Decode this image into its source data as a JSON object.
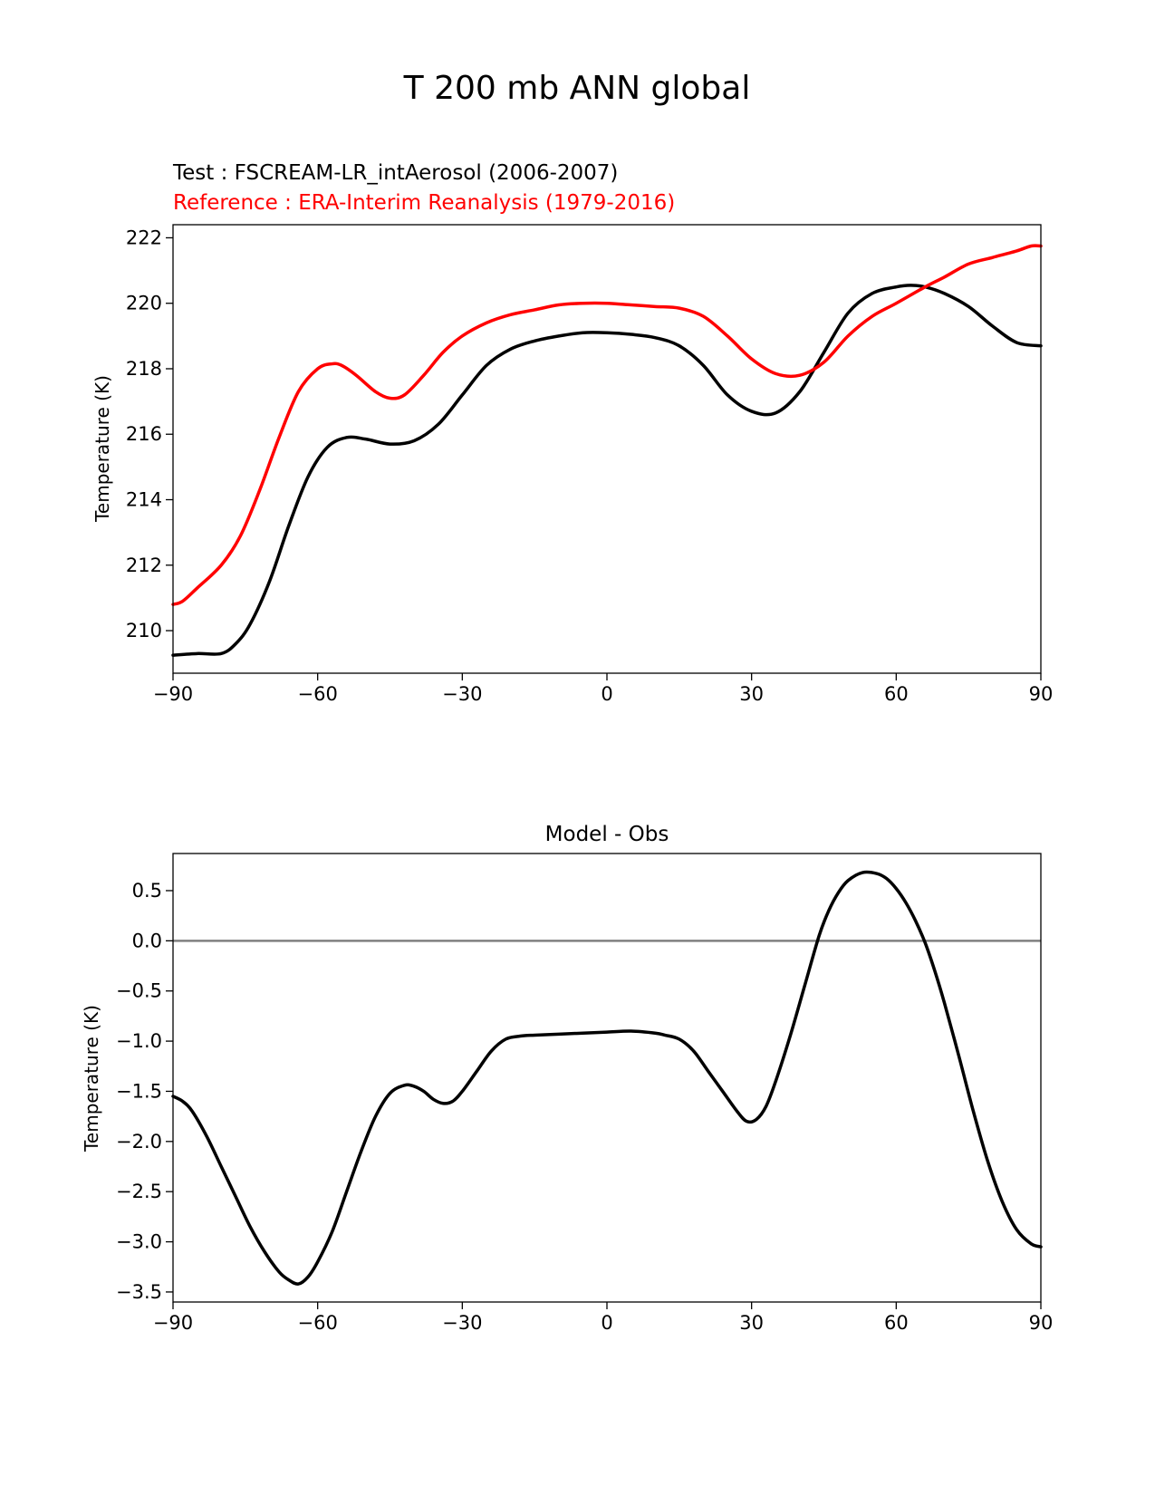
{
  "figure": {
    "title": "T 200 mb ANN global"
  },
  "chart_data": [
    {
      "type": "line",
      "test_label": "Test : FSCREAM-LR_intAerosol (2006-2007)",
      "reference_label": "Reference : ERA-Interim Reanalysis (1979-2016)",
      "xlabel": "",
      "ylabel": "Temperature (K)",
      "xlim": [
        -90,
        90
      ],
      "ylim": [
        208.7,
        222.4
      ],
      "xticks": [
        -90,
        -60,
        -30,
        0,
        30,
        60,
        90
      ],
      "xtick_labels": [
        "−90",
        "−60",
        "−30",
        "0",
        "30",
        "60",
        "90"
      ],
      "yticks": [
        210,
        212,
        214,
        216,
        218,
        220,
        222
      ],
      "ytick_labels": [
        "210",
        "212",
        "214",
        "216",
        "218",
        "220",
        "222"
      ],
      "grid": false,
      "series": [
        {
          "role": "test",
          "color": "#000000",
          "x": [
            -90,
            -85,
            -80,
            -77,
            -74,
            -70,
            -66,
            -62,
            -58,
            -54,
            -50,
            -45,
            -40,
            -35,
            -30,
            -25,
            -20,
            -15,
            -10,
            -5,
            0,
            5,
            10,
            15,
            20,
            25,
            30,
            35,
            40,
            45,
            50,
            55,
            60,
            63,
            66,
            70,
            75,
            80,
            85,
            90
          ],
          "y": [
            209.25,
            209.3,
            209.3,
            209.6,
            210.2,
            211.5,
            213.2,
            214.7,
            215.6,
            215.9,
            215.85,
            215.7,
            215.8,
            216.3,
            217.2,
            218.1,
            218.6,
            218.85,
            219.0,
            219.1,
            219.1,
            219.05,
            218.95,
            218.7,
            218.1,
            217.2,
            216.7,
            216.65,
            217.3,
            218.5,
            219.7,
            220.3,
            220.5,
            220.55,
            220.5,
            220.3,
            219.9,
            219.3,
            218.8,
            218.7
          ]
        },
        {
          "role": "reference",
          "color": "#ff0000",
          "x": [
            -90,
            -88,
            -85,
            -80,
            -76,
            -72,
            -68,
            -64,
            -60,
            -57,
            -55,
            -52,
            -48,
            -45,
            -42,
            -38,
            -34,
            -30,
            -25,
            -20,
            -15,
            -10,
            -5,
            0,
            5,
            10,
            15,
            20,
            25,
            30,
            35,
            40,
            45,
            50,
            55,
            60,
            66,
            70,
            75,
            80,
            85,
            88,
            90
          ],
          "y": [
            210.8,
            210.9,
            211.3,
            212.0,
            212.9,
            214.3,
            215.9,
            217.3,
            218.0,
            218.15,
            218.1,
            217.8,
            217.3,
            217.1,
            217.2,
            217.8,
            218.5,
            219.0,
            219.4,
            219.65,
            219.8,
            219.95,
            220.0,
            220.0,
            219.95,
            219.9,
            219.85,
            219.6,
            219.0,
            218.3,
            217.85,
            217.8,
            218.2,
            219.0,
            219.6,
            220.0,
            220.5,
            220.8,
            221.2,
            221.4,
            221.6,
            221.75,
            221.75
          ]
        }
      ]
    },
    {
      "type": "line",
      "title": "Model - Obs",
      "xlabel": "",
      "ylabel": "Temperature (K)",
      "xlim": [
        -90,
        90
      ],
      "ylim": [
        -3.6,
        0.87
      ],
      "xticks": [
        -90,
        -60,
        -30,
        0,
        30,
        60,
        90
      ],
      "xtick_labels": [
        "−90",
        "−60",
        "−30",
        "0",
        "30",
        "60",
        "90"
      ],
      "yticks": [
        -3.5,
        -3.0,
        -2.5,
        -2.0,
        -1.5,
        -1.0,
        -0.5,
        0.0,
        0.5
      ],
      "ytick_labels": [
        "−3.5",
        "−3.0",
        "−2.5",
        "−2.0",
        "−1.5",
        "−1.0",
        "−0.5",
        "0.0",
        "0.5"
      ],
      "grid": false,
      "zero_line": {
        "y": 0,
        "color": "#808080"
      },
      "series": [
        {
          "role": "difference",
          "color": "#000000",
          "x": [
            -90,
            -88,
            -86,
            -83,
            -80,
            -77,
            -74,
            -71,
            -68,
            -66,
            -64,
            -62,
            -60,
            -57,
            -54,
            -51,
            -48,
            -45,
            -42,
            -40,
            -38,
            -36,
            -34,
            -32,
            -30,
            -27,
            -24,
            -21,
            -18,
            -15,
            -10,
            -5,
            0,
            5,
            10,
            12,
            15,
            18,
            21,
            24,
            27,
            29,
            31,
            33,
            35,
            38,
            41,
            44,
            46,
            48,
            50,
            53,
            56,
            58,
            60,
            62,
            64,
            66,
            68,
            70,
            73,
            76,
            79,
            82,
            85,
            88,
            90
          ],
          "y": [
            -1.55,
            -1.6,
            -1.7,
            -1.95,
            -2.25,
            -2.55,
            -2.85,
            -3.1,
            -3.3,
            -3.38,
            -3.42,
            -3.35,
            -3.2,
            -2.9,
            -2.5,
            -2.1,
            -1.75,
            -1.52,
            -1.44,
            -1.45,
            -1.5,
            -1.58,
            -1.62,
            -1.6,
            -1.5,
            -1.3,
            -1.1,
            -0.98,
            -0.95,
            -0.94,
            -0.93,
            -0.92,
            -0.91,
            -0.9,
            -0.92,
            -0.94,
            -0.98,
            -1.1,
            -1.3,
            -1.5,
            -1.7,
            -1.8,
            -1.78,
            -1.65,
            -1.4,
            -0.95,
            -0.45,
            0.05,
            0.3,
            0.48,
            0.6,
            0.68,
            0.67,
            0.62,
            0.52,
            0.38,
            0.2,
            -0.02,
            -0.3,
            -0.62,
            -1.15,
            -1.7,
            -2.2,
            -2.6,
            -2.88,
            -3.02,
            -3.05
          ]
        }
      ]
    }
  ]
}
